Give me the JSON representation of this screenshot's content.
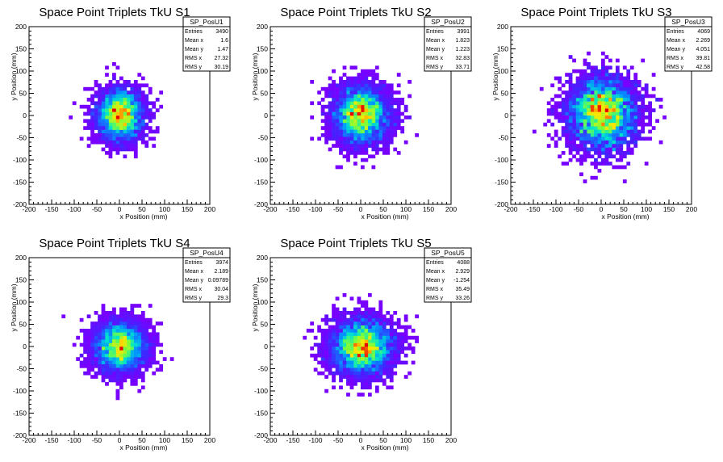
{
  "chart_data": [
    {
      "type": "heatmap",
      "title": "Space Point Triplets TkU S1",
      "xlabel": "x Position (mm)",
      "ylabel": "y Position (mm)",
      "xlim": [
        -200,
        200
      ],
      "ylim": [
        -200,
        200
      ],
      "xticks": [
        -200,
        -150,
        -100,
        -50,
        0,
        50,
        100,
        150,
        200
      ],
      "yticks": [
        -200,
        -150,
        -100,
        -50,
        0,
        50,
        100,
        150,
        200
      ],
      "grid": false,
      "colormap": "rainbow",
      "distribution": {
        "mean_x": 1.6,
        "mean_y": 1.47,
        "rms_x": 27.32,
        "rms_y": 30.19,
        "entries": 3490
      },
      "stats": {
        "name": "SP_PosU1",
        "rows": [
          [
            "Entries",
            "3490"
          ],
          [
            "Mean x",
            "1.6"
          ],
          [
            "Mean y",
            "1.47"
          ],
          [
            "RMS x",
            "27.32"
          ],
          [
            "RMS y",
            "30.19"
          ]
        ]
      }
    },
    {
      "type": "heatmap",
      "title": "Space Point Triplets TkU S2",
      "xlabel": "x Position (mm)",
      "ylabel": "y Position (mm)",
      "xlim": [
        -200,
        200
      ],
      "ylim": [
        -200,
        200
      ],
      "xticks": [
        -200,
        -150,
        -100,
        -50,
        0,
        50,
        100,
        150,
        200
      ],
      "yticks": [
        -200,
        -150,
        -100,
        -50,
        0,
        50,
        100,
        150,
        200
      ],
      "grid": false,
      "colormap": "rainbow",
      "distribution": {
        "mean_x": 1.823,
        "mean_y": 1.223,
        "rms_x": 32.83,
        "rms_y": 33.71,
        "entries": 3991
      },
      "stats": {
        "name": "SP_PosU2",
        "rows": [
          [
            "Entries",
            "3991"
          ],
          [
            "Mean x",
            "1.823"
          ],
          [
            "Mean y",
            "1.223"
          ],
          [
            "RMS x",
            "32.83"
          ],
          [
            "RMS y",
            "33.71"
          ]
        ]
      }
    },
    {
      "type": "heatmap",
      "title": "Space Point Triplets TkU S3",
      "xlabel": "x Position (mm)",
      "ylabel": "y Position (mm)",
      "xlim": [
        -200,
        200
      ],
      "ylim": [
        -200,
        200
      ],
      "xticks": [
        -200,
        -150,
        -100,
        -50,
        0,
        50,
        100,
        150,
        200
      ],
      "yticks": [
        -200,
        -150,
        -100,
        -50,
        0,
        50,
        100,
        150,
        200
      ],
      "grid": false,
      "colormap": "rainbow",
      "distribution": {
        "mean_x": 2.269,
        "mean_y": 4.051,
        "rms_x": 39.81,
        "rms_y": 42.58,
        "entries": 4069
      },
      "stats": {
        "name": "SP_PosU3",
        "rows": [
          [
            "Entries",
            "4069"
          ],
          [
            "Mean x",
            "2.269"
          ],
          [
            "Mean y",
            "4.051"
          ],
          [
            "RMS x",
            "39.81"
          ],
          [
            "RMS y",
            "42.58"
          ]
        ]
      }
    },
    {
      "type": "heatmap",
      "title": "Space Point Triplets TkU S4",
      "xlabel": "x Position (mm)",
      "ylabel": "y Position (mm)",
      "xlim": [
        -200,
        200
      ],
      "ylim": [
        -200,
        200
      ],
      "xticks": [
        -200,
        -150,
        -100,
        -50,
        0,
        50,
        100,
        150,
        200
      ],
      "yticks": [
        -200,
        -150,
        -100,
        -50,
        0,
        50,
        100,
        150,
        200
      ],
      "grid": false,
      "colormap": "rainbow",
      "distribution": {
        "mean_x": 2.189,
        "mean_y": 0.09789,
        "rms_x": 30.04,
        "rms_y": 29.3,
        "entries": 3974
      },
      "stats": {
        "name": "SP_PosU4",
        "rows": [
          [
            "Entries",
            "3974"
          ],
          [
            "Mean x",
            "2.189"
          ],
          [
            "Mean y",
            "0.09789"
          ],
          [
            "RMS x",
            "30.04"
          ],
          [
            "RMS y",
            "29.3"
          ]
        ]
      }
    },
    {
      "type": "heatmap",
      "title": "Space Point Triplets TkU S5",
      "xlabel": "x Position (mm)",
      "ylabel": "y Position (mm)",
      "xlim": [
        -200,
        200
      ],
      "ylim": [
        -200,
        200
      ],
      "xticks": [
        -200,
        -150,
        -100,
        -50,
        0,
        50,
        100,
        150,
        200
      ],
      "yticks": [
        -200,
        -150,
        -100,
        -50,
        0,
        50,
        100,
        150,
        200
      ],
      "grid": false,
      "colormap": "rainbow",
      "distribution": {
        "mean_x": 2.929,
        "mean_y": -1.254,
        "rms_x": 35.49,
        "rms_y": 33.26,
        "entries": 4088
      },
      "stats": {
        "name": "SP_PosU5",
        "rows": [
          [
            "Entries",
            "4088"
          ],
          [
            "Mean x",
            "2.929"
          ],
          [
            "Mean y",
            "-1.254"
          ],
          [
            "RMS x",
            "35.49"
          ],
          [
            "RMS y",
            "33.26"
          ]
        ]
      }
    }
  ]
}
